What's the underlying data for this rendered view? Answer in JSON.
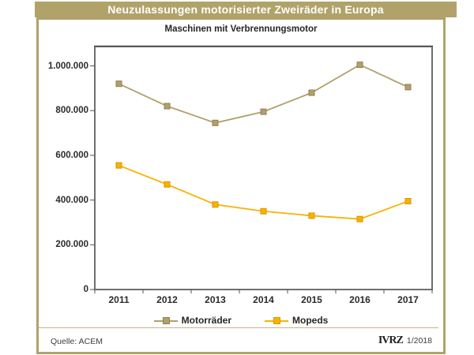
{
  "header": {
    "title": "Neuzulassungen motorisierter Zweiräder in Europa"
  },
  "subtitle": "Maschinen mit Verbrennungsmotor",
  "colors": {
    "accent_tan": "#b1a26a",
    "motorraeder_line": "#b0a06b",
    "mopeds_line": "#f9b200",
    "plot_border": "#6f6f6f",
    "axis_text": "#2b2b2b"
  },
  "chart_data": {
    "type": "line",
    "title": "Neuzulassungen motorisierter Zweiräder in Europa",
    "subtitle": "Maschinen mit Verbrennungsmotor",
    "categories": [
      "2011",
      "2012",
      "2013",
      "2014",
      "2015",
      "2016",
      "2017"
    ],
    "series": [
      {
        "name": "Motorräder",
        "color": "#b0a06b",
        "marker_stroke": "#8f8157",
        "marker": "square",
        "values": [
          920000,
          820000,
          745000,
          795000,
          880000,
          1005000,
          905000
        ]
      },
      {
        "name": "Mopeds",
        "color": "#f9b200",
        "marker_stroke": "#d69700",
        "marker": "square",
        "values": [
          555000,
          470000,
          380000,
          350000,
          330000,
          315000,
          395000
        ]
      }
    ],
    "xlabel": "",
    "ylabel": "",
    "ylim": [
      0,
      1085000
    ],
    "y_ticks": [
      {
        "value": 0,
        "label": "0"
      },
      {
        "value": 200000,
        "label": "200.000"
      },
      {
        "value": 400000,
        "label": "400.000"
      },
      {
        "value": 600000,
        "label": "600.000"
      },
      {
        "value": 800000,
        "label": "800.000"
      },
      {
        "value": 1000000,
        "label": "1.000.000"
      }
    ],
    "grid": false,
    "legend_position": "bottom"
  },
  "footer": {
    "source": "Quelle: ACEM",
    "logo": "IVRZ",
    "issue": "1/2018"
  }
}
